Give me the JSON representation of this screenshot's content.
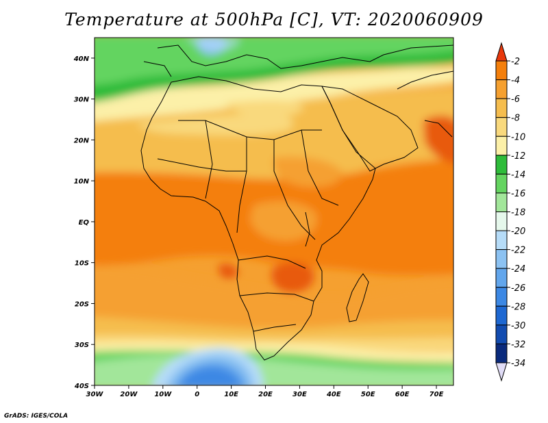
{
  "title": "Temperature at 500hPa [C], VT: 2020060909",
  "credit": "GrADS: IGES/COLA",
  "map": {
    "lon_range": [
      -30,
      75
    ],
    "lat_range": [
      -40,
      45
    ],
    "lat_ticks": [
      {
        "value": 40,
        "label": "40N"
      },
      {
        "value": 30,
        "label": "30N"
      },
      {
        "value": 20,
        "label": "20N"
      },
      {
        "value": 10,
        "label": "10N"
      },
      {
        "value": 0,
        "label": "EQ"
      },
      {
        "value": -10,
        "label": "10S"
      },
      {
        "value": -20,
        "label": "20S"
      },
      {
        "value": -30,
        "label": "30S"
      },
      {
        "value": -40,
        "label": "40S"
      }
    ],
    "lon_ticks": [
      {
        "value": -30,
        "label": "30W"
      },
      {
        "value": -20,
        "label": "20W"
      },
      {
        "value": -10,
        "label": "10W"
      },
      {
        "value": 0,
        "label": "0"
      },
      {
        "value": 10,
        "label": "10E"
      },
      {
        "value": 20,
        "label": "20E"
      },
      {
        "value": 30,
        "label": "30E"
      },
      {
        "value": 40,
        "label": "40E"
      },
      {
        "value": 50,
        "label": "50E"
      },
      {
        "value": 60,
        "label": "60E"
      },
      {
        "value": 70,
        "label": "70E"
      }
    ]
  },
  "colorbar": {
    "levels": [
      {
        "label": "-2",
        "color": "#e85a0f"
      },
      {
        "label": "-4",
        "color": "#f47f0b"
      },
      {
        "label": "-6",
        "color": "#f5a030"
      },
      {
        "label": "-8",
        "color": "#f5bd4e"
      },
      {
        "label": "-10",
        "color": "#f9d97d"
      },
      {
        "label": "-12",
        "color": "#fcf0a8"
      },
      {
        "label": "-14",
        "color": "#2ebc3a"
      },
      {
        "label": "-16",
        "color": "#64d460"
      },
      {
        "label": "-18",
        "color": "#a2e69a"
      },
      {
        "label": "-20",
        "color": "#e6f8ec"
      },
      {
        "label": "-22",
        "color": "#b6dcf8"
      },
      {
        "label": "-24",
        "color": "#8cc2f2"
      },
      {
        "label": "-26",
        "color": "#62a6ec"
      },
      {
        "label": "-28",
        "color": "#3c88e4"
      },
      {
        "label": "-30",
        "color": "#1e68d2"
      },
      {
        "label": "-32",
        "color": "#124cb0"
      },
      {
        "label": "-34",
        "color": "#0a2a7c"
      }
    ],
    "top_arrow_color": "#e8380c",
    "bottom_arrow_color": "#e0dcf6"
  }
}
